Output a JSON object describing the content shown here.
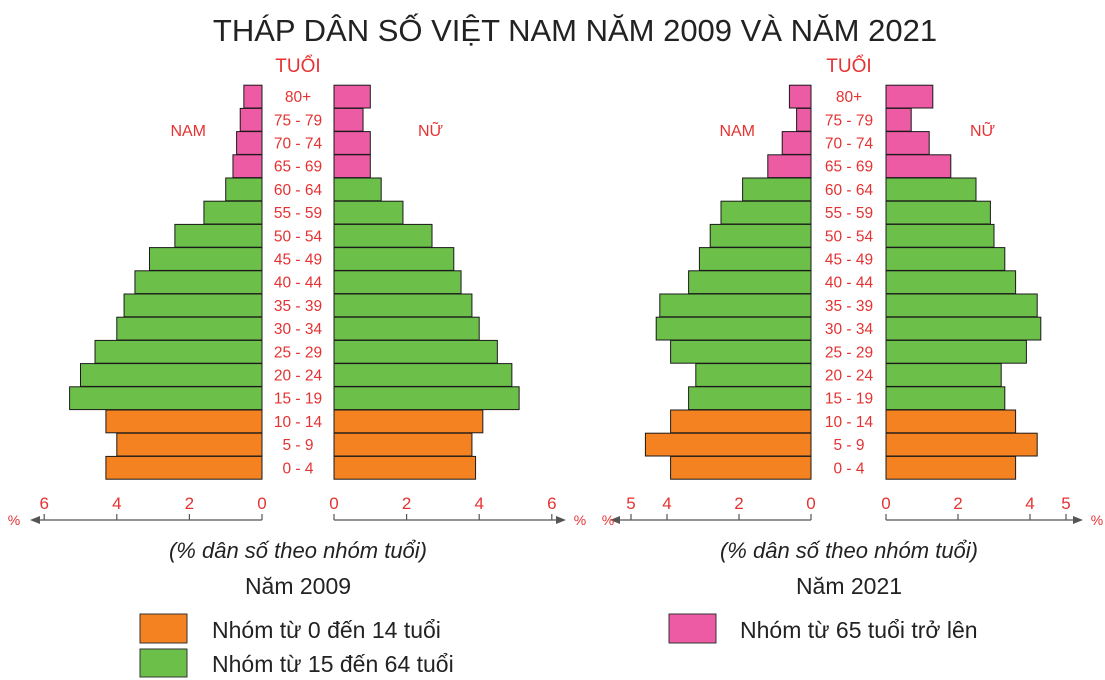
{
  "title": "THÁP DÂN SỐ VIỆT NAM NĂM 2009 VÀ NĂM 2021",
  "colors": {
    "age_0_14": "#f58220",
    "age_15_64": "#6cc04a",
    "age_65_plus": "#ec5ba3",
    "label": "#e53232"
  },
  "legend": [
    {
      "key": "age_0_14",
      "label": "Nhóm từ 0 đến 14 tuổi"
    },
    {
      "key": "age_15_64",
      "label": "Nhóm từ 15 đến 64 tuổi"
    },
    {
      "key": "age_65_plus",
      "label": "Nhóm từ 65 tuổi trở lên"
    }
  ],
  "chart_data": [
    {
      "type": "bar",
      "title": "Năm 2009",
      "axis_header": "TUỔI",
      "male_label": "NAM",
      "female_label": "NỮ",
      "xlabel": "(% dân số theo nhóm tuổi)",
      "unit": "%",
      "xlim": [
        0,
        6
      ],
      "ticks": [
        0,
        2,
        4,
        6
      ],
      "categories": [
        "0 - 4",
        "5 - 9",
        "10 - 14",
        "15 - 19",
        "20 - 24",
        "25 - 29",
        "30 - 34",
        "35 - 39",
        "40 - 44",
        "45 - 49",
        "50 - 54",
        "55 - 59",
        "60 - 64",
        "65 - 69",
        "70 - 74",
        "75 - 79",
        "80+"
      ],
      "groups": [
        "age_0_14",
        "age_0_14",
        "age_0_14",
        "age_15_64",
        "age_15_64",
        "age_15_64",
        "age_15_64",
        "age_15_64",
        "age_15_64",
        "age_15_64",
        "age_15_64",
        "age_15_64",
        "age_15_64",
        "age_65_plus",
        "age_65_plus",
        "age_65_plus",
        "age_65_plus"
      ],
      "series": [
        {
          "name": "NAM",
          "values": [
            4.3,
            4.0,
            4.3,
            5.3,
            5.0,
            4.6,
            4.0,
            3.8,
            3.5,
            3.1,
            2.4,
            1.6,
            1.0,
            0.8,
            0.7,
            0.6,
            0.5
          ]
        },
        {
          "name": "NỮ",
          "values": [
            3.9,
            3.8,
            4.1,
            5.1,
            4.9,
            4.5,
            4.0,
            3.8,
            3.5,
            3.3,
            2.7,
            1.9,
            1.3,
            1.0,
            1.0,
            0.8,
            1.0
          ]
        }
      ]
    },
    {
      "type": "bar",
      "title": "Năm 2021",
      "axis_header": "TUỔI",
      "male_label": "NAM",
      "female_label": "NỮ",
      "xlabel": "(% dân số theo nhóm tuổi)",
      "unit": "%",
      "xlim": [
        0,
        5
      ],
      "ticks": [
        0,
        2,
        4,
        5
      ],
      "categories": [
        "0 - 4",
        "5 - 9",
        "10 - 14",
        "15 - 19",
        "20 - 24",
        "25 - 29",
        "30 - 34",
        "35 - 39",
        "40 - 44",
        "45 - 49",
        "50 - 54",
        "55 - 59",
        "60 - 64",
        "65 - 69",
        "70 - 74",
        "75 - 79",
        "80+"
      ],
      "groups": [
        "age_0_14",
        "age_0_14",
        "age_0_14",
        "age_15_64",
        "age_15_64",
        "age_15_64",
        "age_15_64",
        "age_15_64",
        "age_15_64",
        "age_15_64",
        "age_15_64",
        "age_15_64",
        "age_15_64",
        "age_65_plus",
        "age_65_plus",
        "age_65_plus",
        "age_65_plus"
      ],
      "series": [
        {
          "name": "NAM",
          "values": [
            3.9,
            4.6,
            3.9,
            3.4,
            3.2,
            3.9,
            4.3,
            4.2,
            3.4,
            3.1,
            2.8,
            2.5,
            1.9,
            1.2,
            0.8,
            0.4,
            0.6
          ]
        },
        {
          "name": "NỮ",
          "values": [
            3.6,
            4.2,
            3.6,
            3.3,
            3.2,
            3.9,
            4.3,
            4.2,
            3.6,
            3.3,
            3.0,
            2.9,
            2.5,
            1.8,
            1.2,
            0.7,
            1.3
          ]
        }
      ]
    }
  ]
}
